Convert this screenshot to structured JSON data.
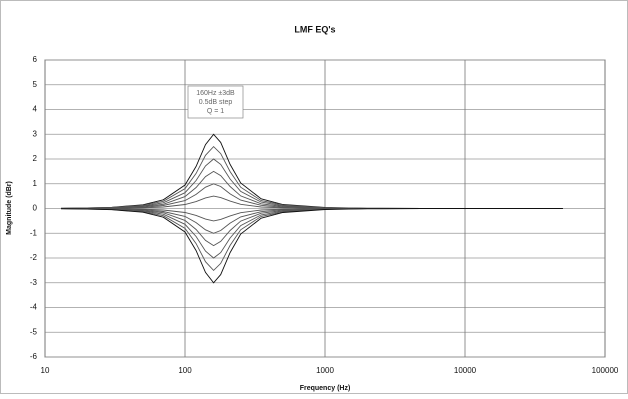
{
  "chart_data": {
    "type": "line",
    "title": "LMF EQ's",
    "annotation": [
      "160Hz ±3dB",
      "0.5dB step",
      "Q = 1"
    ],
    "x_label": "Frequency (Hz)",
    "y_label": "Magnitude (dBr)",
    "x_scale": "log",
    "grid": true,
    "xlim": [
      10,
      100000
    ],
    "xticks": [
      10,
      100,
      1000,
      10000,
      100000
    ],
    "ylim": [
      -6,
      6
    ],
    "yticks": [
      -6,
      -5,
      -4,
      -3,
      -2,
      -1,
      0,
      1,
      2,
      3,
      4,
      5,
      6
    ],
    "x": [
      13,
      20,
      30,
      50,
      70,
      100,
      120,
      140,
      160,
      180,
      210,
      250,
      350,
      500,
      1000,
      2000,
      5000,
      20000,
      50000
    ],
    "series": [
      {
        "color": "#111111",
        "values": [
          0.01,
          0.02,
          0.05,
          0.15,
          0.35,
          0.95,
          1.7,
          2.58,
          3,
          2.67,
          1.78,
          1.03,
          0.39,
          0.16,
          0.04,
          0.01,
          0,
          0,
          0
        ]
      },
      {
        "color": "#555555",
        "values": [
          0.01,
          0.02,
          0.04,
          0.13,
          0.29,
          0.8,
          1.42,
          2.15,
          2.5,
          2.22,
          1.49,
          0.86,
          0.32,
          0.14,
          0.03,
          0.01,
          0,
          0,
          0
        ]
      },
      {
        "color": "#555555",
        "values": [
          0.01,
          0.01,
          0.03,
          0.1,
          0.23,
          0.64,
          1.13,
          1.72,
          2,
          1.78,
          1.19,
          0.69,
          0.26,
          0.11,
          0.02,
          0.01,
          0,
          0,
          0
        ]
      },
      {
        "color": "#555555",
        "values": [
          0,
          0.01,
          0.03,
          0.08,
          0.17,
          0.48,
          0.85,
          1.29,
          1.5,
          1.33,
          0.89,
          0.51,
          0.19,
          0.08,
          0.02,
          0,
          0,
          0,
          0
        ]
      },
      {
        "color": "#555555",
        "values": [
          0,
          0.01,
          0.02,
          0.05,
          0.12,
          0.32,
          0.57,
          0.86,
          1,
          0.89,
          0.59,
          0.34,
          0.13,
          0.05,
          0.01,
          0,
          0,
          0,
          0
        ]
      },
      {
        "color": "#555555",
        "values": [
          0,
          0,
          0.01,
          0.03,
          0.06,
          0.16,
          0.28,
          0.43,
          0.5,
          0.44,
          0.3,
          0.17,
          0.06,
          0.03,
          0.01,
          0,
          0,
          0,
          0
        ]
      },
      {
        "color": "#555555",
        "values": [
          0,
          0,
          -0.01,
          -0.03,
          -0.06,
          -0.16,
          -0.28,
          -0.43,
          -0.5,
          -0.44,
          -0.3,
          -0.17,
          -0.06,
          -0.03,
          -0.01,
          0,
          0,
          0,
          0
        ]
      },
      {
        "color": "#555555",
        "values": [
          0,
          -0.01,
          -0.02,
          -0.05,
          -0.12,
          -0.32,
          -0.57,
          -0.86,
          -1,
          -0.89,
          -0.59,
          -0.34,
          -0.13,
          -0.05,
          -0.01,
          0,
          0,
          0,
          0
        ]
      },
      {
        "color": "#555555",
        "values": [
          0,
          -0.01,
          -0.03,
          -0.08,
          -0.17,
          -0.48,
          -0.85,
          -1.29,
          -1.5,
          -1.33,
          -0.89,
          -0.51,
          -0.19,
          -0.08,
          -0.02,
          0,
          0,
          0,
          0
        ]
      },
      {
        "color": "#555555",
        "values": [
          -0.01,
          -0.01,
          -0.03,
          -0.1,
          -0.23,
          -0.64,
          -1.13,
          -1.72,
          -2,
          -1.78,
          -1.19,
          -0.69,
          -0.26,
          -0.11,
          -0.02,
          -0.01,
          0,
          0,
          0
        ]
      },
      {
        "color": "#555555",
        "values": [
          -0.01,
          -0.02,
          -0.04,
          -0.13,
          -0.29,
          -0.8,
          -1.42,
          -2.15,
          -2.5,
          -2.22,
          -1.49,
          -0.86,
          -0.32,
          -0.14,
          -0.03,
          -0.01,
          0,
          0,
          0
        ]
      },
      {
        "color": "#111111",
        "values": [
          -0.01,
          -0.02,
          -0.05,
          -0.15,
          -0.35,
          -0.95,
          -1.7,
          -2.58,
          -3,
          -2.67,
          -1.78,
          -1.03,
          -0.39,
          -0.16,
          -0.04,
          -0.01,
          0,
          0,
          0
        ]
      }
    ]
  }
}
